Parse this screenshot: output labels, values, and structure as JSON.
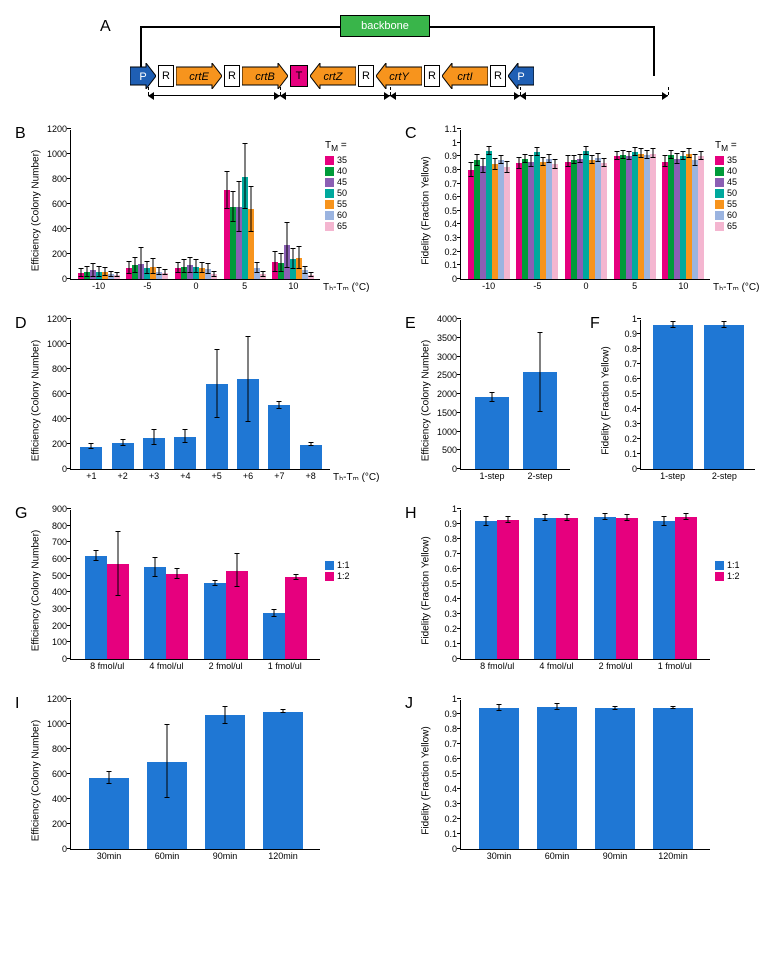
{
  "colors": {
    "blue": "#1f77d4",
    "magenta": "#e6007e",
    "tm35": "#e6007e",
    "tm40": "#009b3a",
    "tm45": "#8b5fb4",
    "tm50": "#00a99d",
    "tm55": "#f7941d",
    "tm60": "#9bb4e0",
    "tm65": "#f4b6d0",
    "green": "#39b54a",
    "orange": "#f7941d",
    "darkblue": "#1f5fb4"
  },
  "panelA": {
    "label": "A",
    "backbone": "backbone",
    "genes": [
      "P",
      "R",
      "crtE",
      "R",
      "crtB",
      "T",
      "crtZ",
      "R",
      "crtY",
      "R",
      "crtI",
      "R",
      "P"
    ]
  },
  "panelB": {
    "label": "B",
    "ylabel": "Efficiency (Colony Number)",
    "xlabel": "T_H-T_M (°C)",
    "legend_title": "T_M =",
    "legend_items": [
      "35",
      "40",
      "45",
      "50",
      "55",
      "60",
      "65"
    ],
    "ylim": [
      0,
      1200
    ],
    "ytick_step": 200,
    "categories": [
      "-10",
      "-5",
      "0",
      "5",
      "10"
    ],
    "data": {
      "-10": {
        "35": 50,
        "40": 60,
        "45": 70,
        "50": 60,
        "55": 55,
        "60": 40,
        "65": 30
      },
      "-5": {
        "35": 90,
        "40": 110,
        "45": 120,
        "50": 90,
        "55": 100,
        "60": 60,
        "65": 50
      },
      "0": {
        "35": 90,
        "40": 100,
        "45": 110,
        "50": 100,
        "55": 90,
        "60": 80,
        "65": 40
      },
      "5": {
        "35": 710,
        "40": 580,
        "45": 580,
        "50": 820,
        "55": 560,
        "60": 90,
        "65": 40
      },
      "10": {
        "35": 140,
        "40": 130,
        "45": 270,
        "50": 160,
        "55": 170,
        "60": 70,
        "65": 30
      }
    },
    "err": {
      "-10": {
        "35": 30,
        "40": 40,
        "45": 50,
        "50": 40,
        "55": 30,
        "60": 20,
        "65": 15
      },
      "-5": {
        "35": 50,
        "40": 60,
        "45": 130,
        "50": 50,
        "55": 60,
        "60": 30,
        "65": 20
      },
      "0": {
        "35": 40,
        "40": 50,
        "45": 60,
        "50": 50,
        "55": 40,
        "60": 40,
        "65": 20
      },
      "5": {
        "35": 150,
        "40": 120,
        "45": 200,
        "50": 260,
        "55": 180,
        "60": 40,
        "65": 20
      },
      "10": {
        "35": 80,
        "40": 70,
        "45": 180,
        "50": 80,
        "55": 90,
        "60": 30,
        "65": 15
      }
    }
  },
  "panelC": {
    "label": "C",
    "ylabel": "Fidelity (Fraction Yellow)",
    "xlabel": "T_H-T_M (°C)",
    "legend_title": "T_M =",
    "legend_items": [
      "35",
      "40",
      "45",
      "50",
      "55",
      "60",
      "65"
    ],
    "ylim": [
      0,
      1.1
    ],
    "ytick_step": 0.1,
    "categories": [
      "-10",
      "-5",
      "0",
      "5",
      "10"
    ],
    "data": {
      "-10": {
        "35": 0.8,
        "40": 0.87,
        "45": 0.83,
        "50": 0.94,
        "55": 0.84,
        "60": 0.87,
        "65": 0.82
      },
      "-5": {
        "35": 0.85,
        "40": 0.88,
        "45": 0.86,
        "50": 0.93,
        "55": 0.86,
        "60": 0.88,
        "65": 0.84
      },
      "0": {
        "35": 0.86,
        "40": 0.87,
        "45": 0.88,
        "50": 0.94,
        "55": 0.87,
        "60": 0.89,
        "65": 0.85
      },
      "5": {
        "35": 0.9,
        "40": 0.91,
        "45": 0.9,
        "50": 0.93,
        "55": 0.92,
        "60": 0.91,
        "65": 0.92
      },
      "10": {
        "35": 0.86,
        "40": 0.91,
        "45": 0.88,
        "50": 0.9,
        "55": 0.92,
        "60": 0.87,
        "65": 0.9
      }
    },
    "err": {
      "-10": {
        "35": 0.05,
        "40": 0.04,
        "45": 0.05,
        "50": 0.03,
        "55": 0.04,
        "60": 0.03,
        "65": 0.04
      },
      "-5": {
        "35": 0.04,
        "40": 0.03,
        "45": 0.04,
        "50": 0.03,
        "55": 0.03,
        "60": 0.03,
        "65": 0.03
      },
      "0": {
        "35": 0.04,
        "40": 0.03,
        "45": 0.03,
        "50": 0.03,
        "55": 0.03,
        "60": 0.03,
        "65": 0.03
      },
      "5": {
        "35": 0.03,
        "40": 0.03,
        "45": 0.03,
        "50": 0.03,
        "55": 0.03,
        "60": 0.03,
        "65": 0.03
      },
      "10": {
        "35": 0.04,
        "40": 0.03,
        "45": 0.04,
        "50": 0.03,
        "55": 0.03,
        "60": 0.04,
        "65": 0.03
      }
    }
  },
  "panelD": {
    "label": "D",
    "ylabel": "Efficiency (Colony Number)",
    "xlabel": "T_H-T_M (°C)",
    "ylim": [
      0,
      1200
    ],
    "ytick_step": 200,
    "categories": [
      "+1",
      "+2",
      "+3",
      "+4",
      "+5",
      "+6",
      "+7",
      "+8"
    ],
    "values": [
      180,
      210,
      250,
      260,
      680,
      720,
      510,
      195
    ],
    "err": [
      20,
      25,
      60,
      50,
      270,
      340,
      30,
      10
    ]
  },
  "panelE": {
    "label": "E",
    "ylabel": "Efficiency (Colony Number)",
    "ylim": [
      0,
      4000
    ],
    "ytick_step": 500,
    "categories": [
      "1-step",
      "2-step"
    ],
    "values": [
      1920,
      2580
    ],
    "err": [
      120,
      1050
    ]
  },
  "panelF": {
    "label": "F",
    "ylabel": "Fidelity (Fraction Yellow)",
    "ylim": [
      0,
      1
    ],
    "ytick_step": 0.1,
    "categories": [
      "1-step",
      "2-step"
    ],
    "values": [
      0.96,
      0.96
    ],
    "err": [
      0.02,
      0.02
    ]
  },
  "panelG": {
    "label": "G",
    "ylabel": "Efficiency (Colony Number)",
    "ylim": [
      0,
      900
    ],
    "ytick_step": 100,
    "categories": [
      "8 fmol/ul",
      "4 fmol/ul",
      "2 fmol/ul",
      "1 fmol/ul"
    ],
    "legend_items": [
      "1:1",
      "1:2"
    ],
    "series": {
      "1:1": [
        620,
        550,
        455,
        275
      ],
      "1:2": [
        570,
        510,
        530,
        490
      ]
    },
    "err": {
      "1:1": [
        30,
        55,
        15,
        20
      ],
      "1:2": [
        190,
        30,
        100,
        15
      ]
    }
  },
  "panelH": {
    "label": "H",
    "ylabel": "Fidelity (Fraction Yellow)",
    "ylim": [
      0,
      1
    ],
    "ytick_step": 0.1,
    "categories": [
      "8 fmol/ul",
      "4 fmol/ul",
      "2 fmol/ul",
      "1 fmol/ul"
    ],
    "legend_items": [
      "1:1",
      "1:2"
    ],
    "series": {
      "1:1": [
        0.92,
        0.94,
        0.95,
        0.92
      ],
      "1:2": [
        0.93,
        0.94,
        0.94,
        0.95
      ]
    },
    "err": {
      "1:1": [
        0.03,
        0.02,
        0.02,
        0.03
      ],
      "1:2": [
        0.02,
        0.02,
        0.02,
        0.02
      ]
    }
  },
  "panelI": {
    "label": "I",
    "ylabel": "Efficiency (Colony Number)",
    "ylim": [
      0,
      1200
    ],
    "ytick_step": 200,
    "categories": [
      "30min",
      "60min",
      "90min",
      "120min"
    ],
    "values": [
      570,
      700,
      1070,
      1100
    ],
    "err": [
      50,
      290,
      70,
      10
    ]
  },
  "panelJ": {
    "label": "J",
    "ylabel": "Fidelity (Fraction Yellow)",
    "ylim": [
      0,
      1
    ],
    "ytick_step": 0.1,
    "categories": [
      "30min",
      "60min",
      "90min",
      "120min"
    ],
    "values": [
      0.94,
      0.95,
      0.94,
      0.94
    ],
    "err": [
      0.02,
      0.02,
      0.01,
      0.005
    ]
  }
}
